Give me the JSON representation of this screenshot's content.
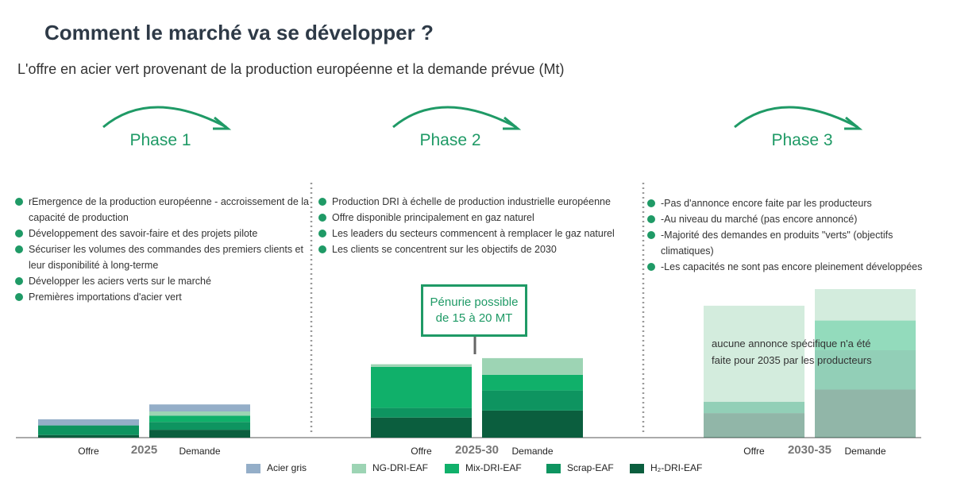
{
  "header": {
    "title": "Comment le marché va se développer ?",
    "subtitle": "L'offre en acier vert provenant de la production européenne et la demande prévue (Mt)"
  },
  "phases": [
    {
      "label": "Phase 1",
      "bullets": [
        "rEmergence de la production européenne - accroissement de la capacité de production",
        "Développement des savoir-faire et des projets pilote",
        "Sécuriser les volumes des commandes des premiers clients et leur disponibilité à long-terme",
        "Développer les aciers verts sur le marché",
        "Premières importations d'acier vert"
      ]
    },
    {
      "label": "Phase 2",
      "bullets": [
        "Production DRI à échelle de production industrielle européenne",
        "Offre disponible principalement en gaz naturel",
        "Les leaders du secteurs commencent à remplacer le gaz naturel",
        "Les clients se concentrent sur les objectifs de 2030"
      ]
    },
    {
      "label": "Phase 3",
      "bullets": [
        "-Pas d'annonce encore faite par les producteurs",
        "-Au niveau du marché (pas encore annoncé)",
        "-Majorité des demandes en produits \"verts\" (objectifs climatiques)",
        "-Les capacités ne sont pas encore pleinement développées"
      ]
    }
  ],
  "chart_data": {
    "type": "stacked-bar",
    "categories": [
      "Offre",
      "Demande",
      "Offre",
      "Demande",
      "Offre",
      "Demande"
    ],
    "groups": [
      "2025",
      "2025-30",
      "2030-35"
    ],
    "faded": [
      false,
      false,
      false,
      false,
      true,
      true
    ],
    "series": [
      {
        "name": "Acier gris",
        "color": "#94aec8",
        "values": [
          3.5,
          4,
          0,
          0,
          0,
          0
        ]
      },
      {
        "name": "NG-DRI-EAF",
        "color": "#9dd4b4",
        "values": [
          0,
          2.5,
          1.5,
          9.5,
          55,
          18
        ]
      },
      {
        "name": "Mix-DRI-EAF",
        "color": "#10b06a",
        "values": [
          0,
          3.5,
          23.5,
          9,
          0,
          17
        ]
      },
      {
        "name": "Scrap-EAF",
        "color": "#0e9460",
        "values": [
          5.5,
          4.5,
          5.5,
          11.5,
          6.5,
          22.5
        ]
      },
      {
        "name": "H₂-DRI-EAF",
        "color": "#0b5e3e",
        "values": [
          1.5,
          4.5,
          11.5,
          15.5,
          14,
          27.5
        ]
      }
    ],
    "callout": "Pénurie possible de 15 à 20 MT",
    "annotation": "aucune annonce spécifique n'a été faite pour 2035 par les producteurs"
  }
}
